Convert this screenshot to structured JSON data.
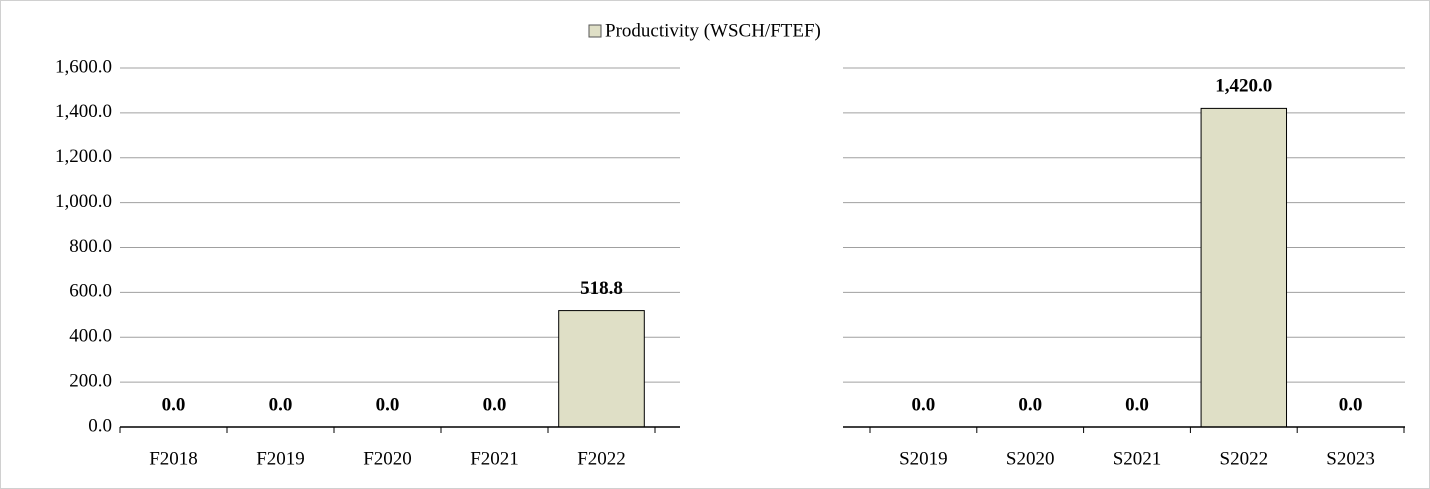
{
  "chart_data": [
    {
      "type": "bar",
      "categories": [
        "F2018",
        "F2019",
        "F2020",
        "F2021",
        "F2022"
      ],
      "series": [
        {
          "name": "Productivity (WSCH/FTEF)",
          "color": "#dfdfc6",
          "values": [
            0,
            0,
            0,
            0,
            518.8
          ],
          "value_labels": [
            "0.0",
            "0.0",
            "0.0",
            "0.0",
            "518.8"
          ]
        }
      ],
      "ylim": [
        0,
        1600
      ],
      "yticks": [
        {
          "value": 0,
          "label": "0.0"
        },
        {
          "value": 200,
          "label": "200.0"
        },
        {
          "value": 400,
          "label": "400.0"
        },
        {
          "value": 600,
          "label": "600.0"
        },
        {
          "value": 800,
          "label": "800.0"
        },
        {
          "value": 1000,
          "label": "1,000.0"
        },
        {
          "value": 1200,
          "label": "1,200.0"
        },
        {
          "value": 1400,
          "label": "1,400.0"
        },
        {
          "value": 1600,
          "label": "1,600.0"
        }
      ],
      "grid": true
    },
    {
      "type": "bar",
      "categories": [
        "S2019",
        "S2020",
        "S2021",
        "S2022",
        "S2023"
      ],
      "color": "#dfdfc6",
      "values": [
        0,
        0,
        0,
        1420,
        0
      ],
      "value_labels": [
        "0.0",
        "0.0",
        "0.0",
        "1,420.0",
        "0.0"
      ],
      "ylim": [
        0,
        1600
      ],
      "yticks": [
        0,
        200,
        400,
        600,
        800,
        1000,
        1200,
        1400,
        1600
      ],
      "grid": true
    }
  ]
}
